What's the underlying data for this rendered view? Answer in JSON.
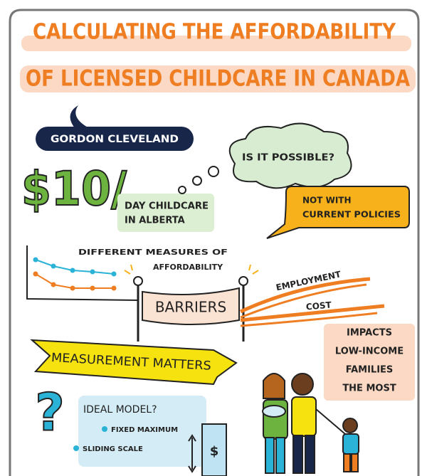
{
  "header": {
    "title_lines": [
      "CALCULATING THE AFFORDABILITY",
      "OF LICENSED CHILDCARE IN CANADA"
    ],
    "author": "GORDON CLEVELAND"
  },
  "price": {
    "amount": "$10/",
    "caption_lines": [
      "DAY CHILDCARE",
      "IN ALBERTA"
    ]
  },
  "question": "IS IT POSSIBLE?",
  "answer_lines": [
    "NOT WITH",
    "CURRENT POLICIES"
  ],
  "measures_lines": [
    "DIFFERENT MEASURES OF",
    "AFFORDABILITY"
  ],
  "barriers": {
    "label": "BARRIERS",
    "items": [
      "EMPLOYMENT",
      "COST"
    ]
  },
  "impact_lines": [
    "IMPACTS",
    "LOW-INCOME",
    "FAMILIES",
    "THE MOST"
  ],
  "banner": "MEASUREMENT MATTERS",
  "ideal_model": {
    "mark": "?",
    "title": "IDEAL MODEL?",
    "options": [
      "FIXED MAXIMUM",
      "SLIDING SCALE"
    ],
    "gauge_symbol": "$"
  }
}
